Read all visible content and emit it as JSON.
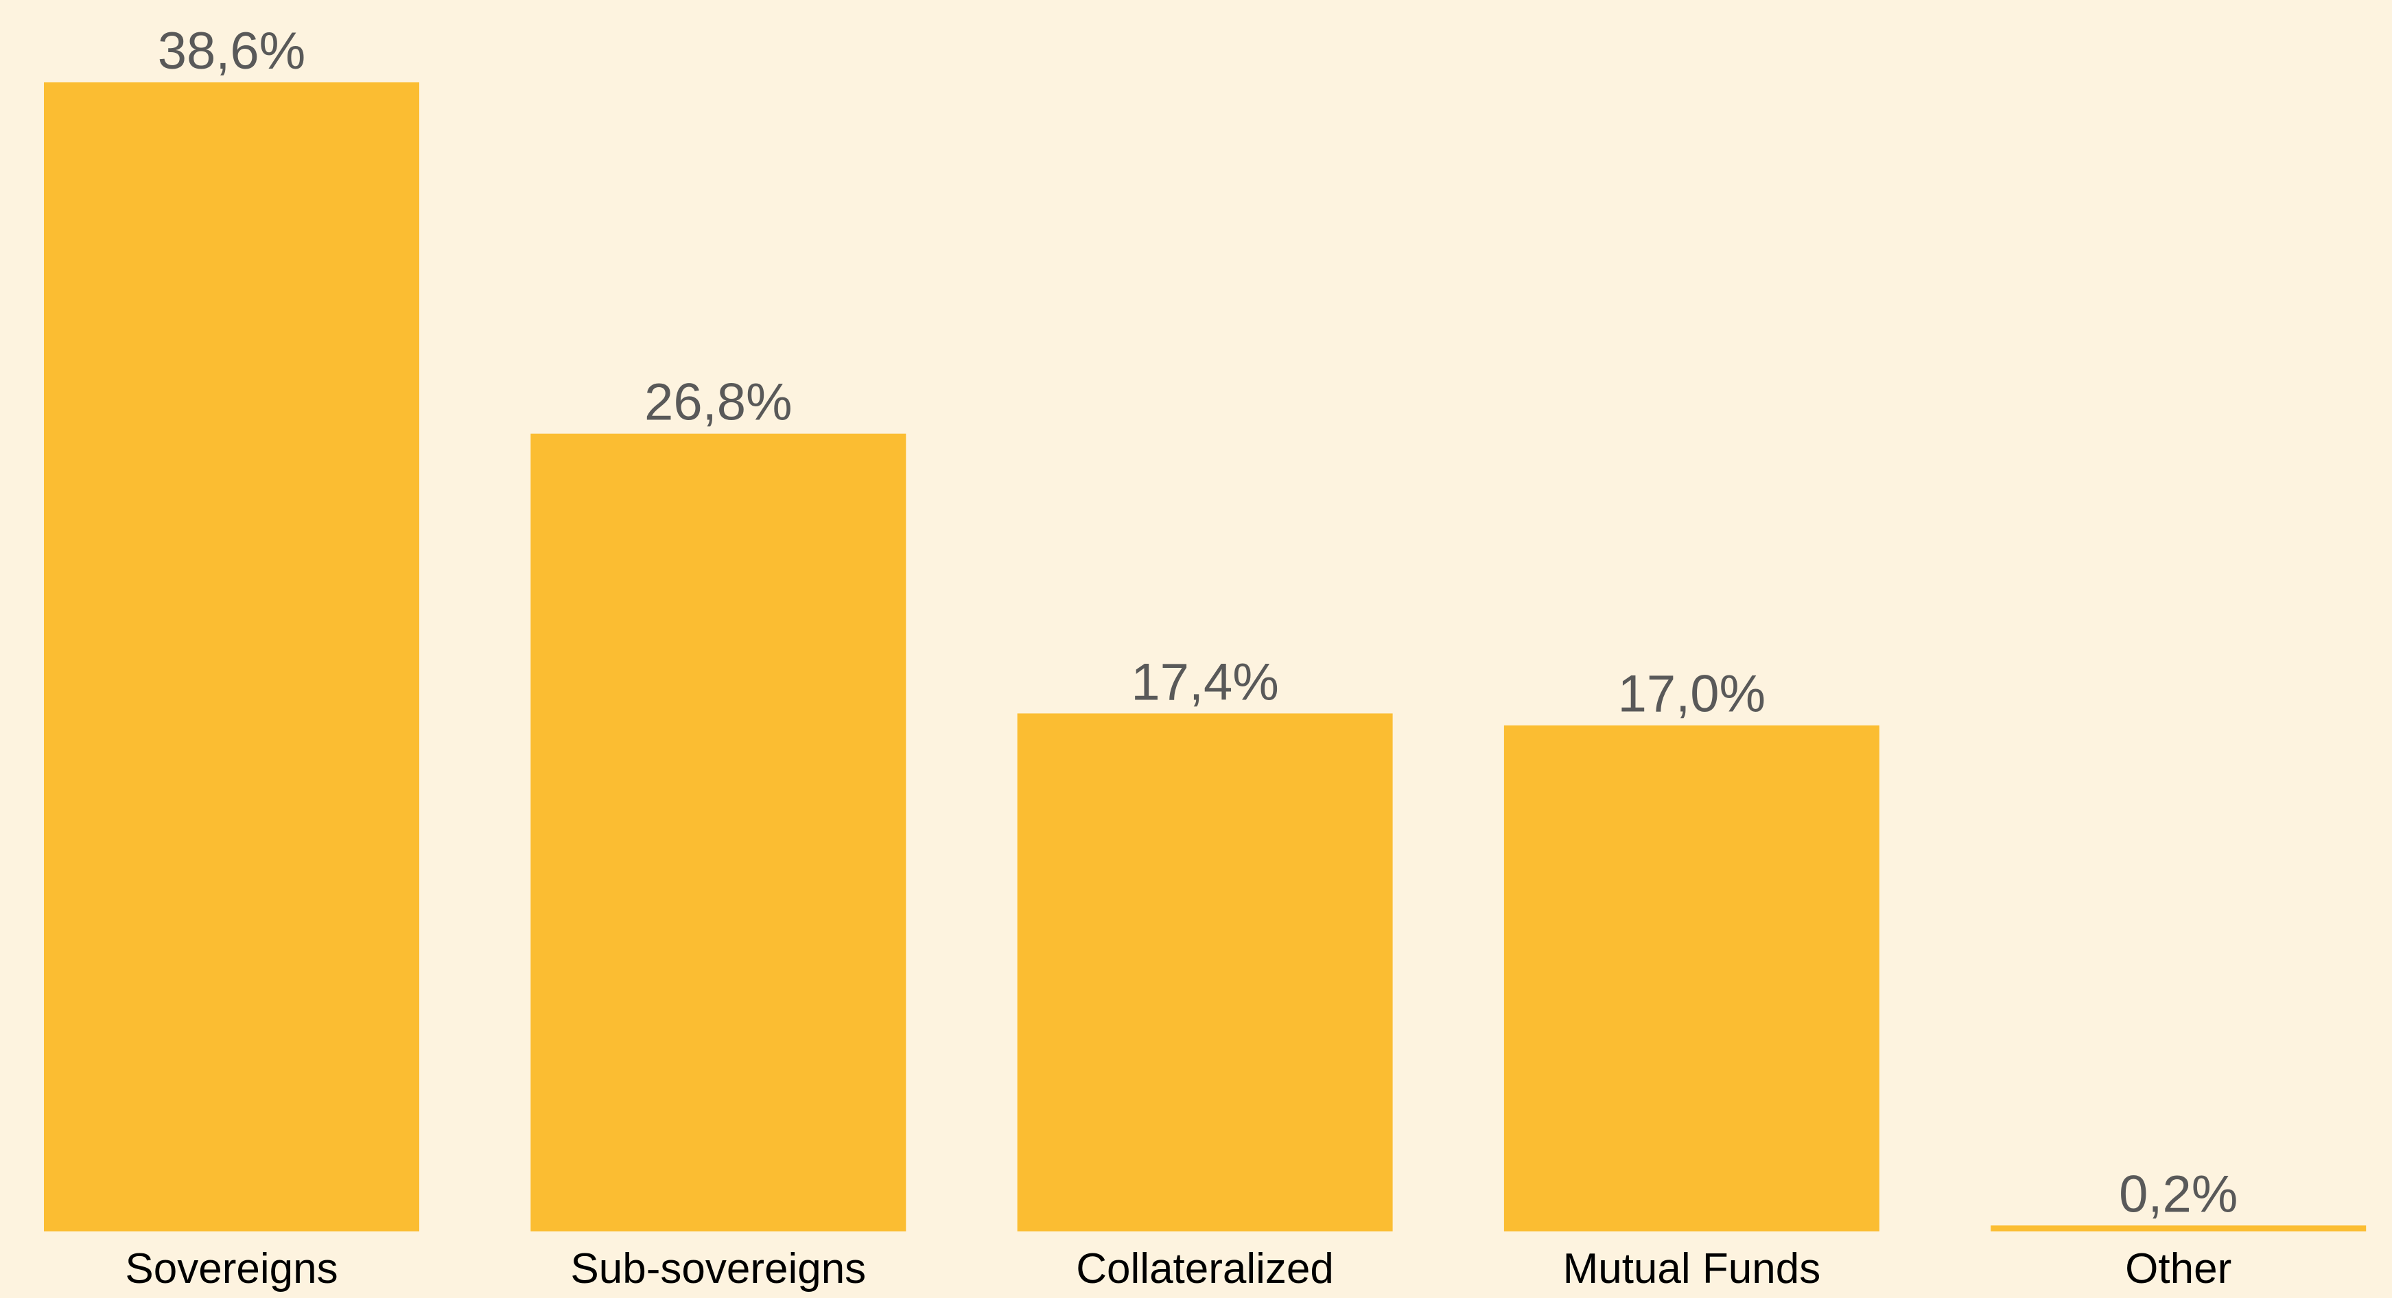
{
  "chart_data": {
    "type": "bar",
    "categories": [
      "Sovereigns",
      "Sub-sovereigns",
      "Collateralized",
      "Mutual Funds",
      "Other"
    ],
    "values": [
      38.6,
      26.8,
      17.4,
      17.0,
      0.2
    ],
    "value_labels": [
      "38,6%",
      "26,8%",
      "17,4%",
      "17,0%",
      "0,2%"
    ],
    "color": "#fbbd32"
  }
}
